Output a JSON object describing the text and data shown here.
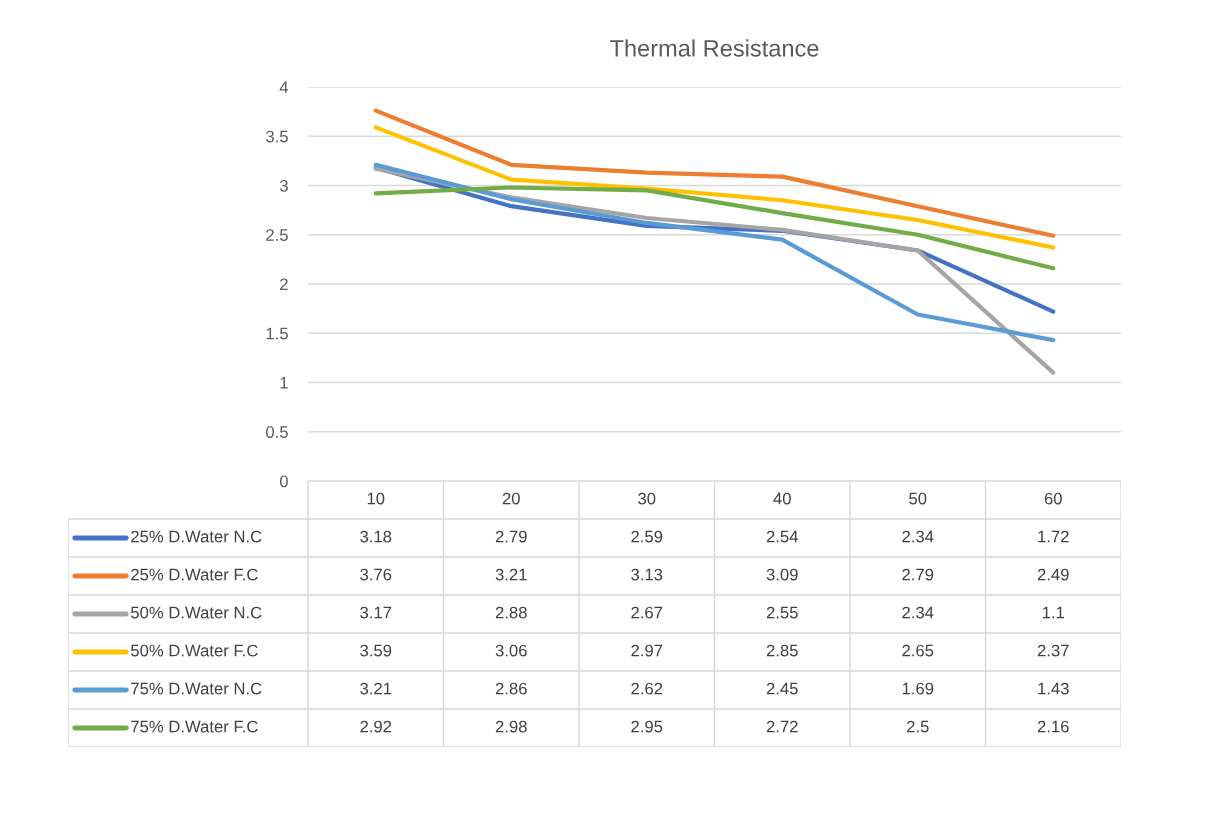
{
  "chart_data": {
    "type": "line",
    "title": "Thermal Resistance",
    "categories": [
      "10",
      "20",
      "30",
      "40",
      "50",
      "60"
    ],
    "series": [
      {
        "name": "25% D.Water N.C",
        "color": "#4472c4",
        "values": [
          3.18,
          2.79,
          2.59,
          2.54,
          2.34,
          1.72
        ]
      },
      {
        "name": "25% D.Water F.C",
        "color": "#ed7d31",
        "values": [
          3.76,
          3.21,
          3.13,
          3.09,
          2.79,
          2.49
        ]
      },
      {
        "name": "50% D.Water N.C",
        "color": "#a5a5a5",
        "values": [
          3.17,
          2.88,
          2.67,
          2.55,
          2.34,
          1.1
        ]
      },
      {
        "name": "50% D.Water F.C",
        "color": "#ffc000",
        "values": [
          3.59,
          3.06,
          2.97,
          2.85,
          2.65,
          2.37
        ]
      },
      {
        "name": "75% D.Water N.C",
        "color": "#5b9bd5",
        "values": [
          3.21,
          2.86,
          2.62,
          2.45,
          1.69,
          1.43
        ]
      },
      {
        "name": "75% D.Water F.C",
        "color": "#70ad47",
        "values": [
          2.92,
          2.98,
          2.95,
          2.72,
          2.5,
          2.16
        ]
      }
    ],
    "ylim": [
      0,
      4
    ],
    "yticks": [
      0,
      0.5,
      1,
      1.5,
      2,
      2.5,
      3,
      3.5,
      4
    ],
    "grid": "y",
    "legend": "bottom",
    "data_labels": true,
    "marker": "none",
    "line_style": "solid"
  }
}
